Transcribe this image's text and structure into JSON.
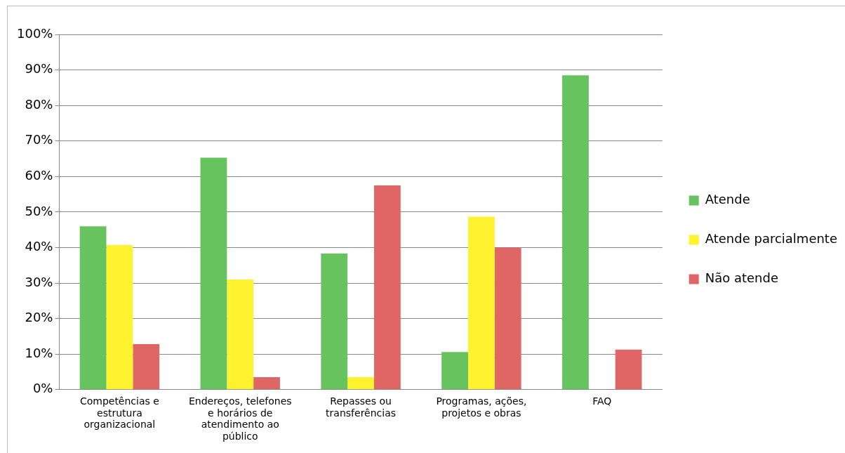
{
  "chart_data": {
    "type": "bar",
    "categories": [
      "Competências e estrutura organizacional",
      "Endereços, telefones e horários de atendimento ao público",
      "Repasses ou transferências",
      "Programas, ações, projetos e obras",
      "FAQ"
    ],
    "series": [
      {
        "name": "Atende",
        "color": "#66c35e",
        "values": [
          46,
          65.3,
          38.3,
          10.6,
          88.5
        ]
      },
      {
        "name": "Atende parcialmente",
        "color": "#fff22e",
        "values": [
          40.7,
          31,
          3.5,
          48.7,
          0
        ]
      },
      {
        "name": "Não atende",
        "color": "#e06666",
        "values": [
          12.8,
          3.5,
          57.5,
          40,
          11.3
        ]
      }
    ],
    "ylim": [
      0,
      100
    ],
    "yticks": [
      {
        "value": 0,
        "label": "0%"
      },
      {
        "value": 10,
        "label": "10%"
      },
      {
        "value": 20,
        "label": "20%"
      },
      {
        "value": 30,
        "label": "30%"
      },
      {
        "value": 40,
        "label": "40%"
      },
      {
        "value": 50,
        "label": "50%"
      },
      {
        "value": 60,
        "label": "60%"
      },
      {
        "value": 70,
        "label": "70%"
      },
      {
        "value": 80,
        "label": "80%"
      },
      {
        "value": 90,
        "label": "90%"
      },
      {
        "value": 100,
        "label": "100%"
      }
    ],
    "grid": "y",
    "legend": "right"
  }
}
